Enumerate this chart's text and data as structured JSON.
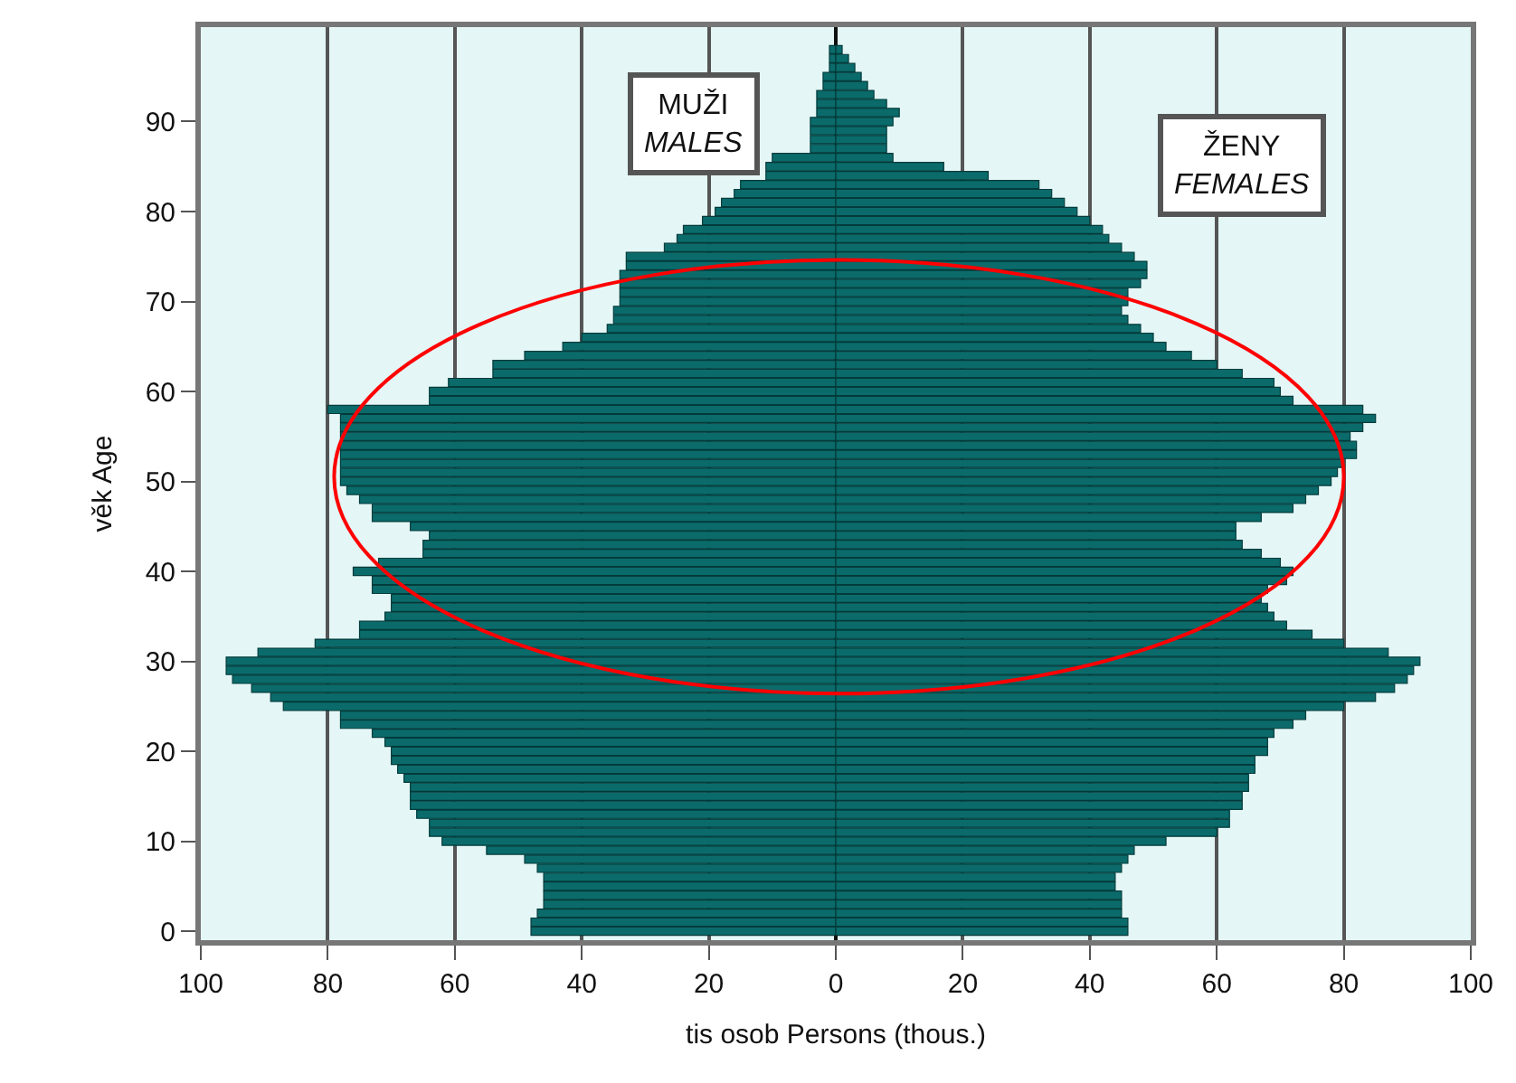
{
  "chart_data": {
    "type": "bar",
    "orientation": "horizontal",
    "xlabel": "tis osob Persons (thous.)",
    "ylabel": "věk Age",
    "categories": [
      null,
      null,
      null,
      null,
      null,
      null,
      null,
      null,
      "90",
      null,
      null,
      null,
      null,
      null,
      null,
      null,
      null,
      null,
      "80",
      null,
      null,
      null,
      null,
      null,
      null,
      null,
      null,
      null,
      "70",
      null,
      null,
      null,
      null,
      null,
      null,
      null,
      null,
      null,
      "60",
      null,
      null,
      null,
      null,
      null,
      null,
      null,
      null,
      null,
      "50",
      null,
      null,
      null,
      null,
      null,
      null,
      null,
      null,
      null,
      "40",
      null,
      null,
      null,
      null,
      null,
      null,
      null,
      null,
      null,
      "30",
      null,
      null,
      null,
      null,
      null,
      null,
      null,
      null,
      null,
      "20",
      null,
      null,
      null,
      null,
      null,
      null,
      null,
      null,
      null,
      "10",
      null,
      null,
      null,
      null,
      null,
      null,
      null,
      null,
      null,
      "0"
    ],
    "series": [
      {
        "name": "MUŽI\nMALES",
        "color": "#0b6b6b",
        "values": [
          -1,
          -1,
          -1,
          -2,
          -2,
          -3,
          -3,
          -3,
          -4,
          -4,
          -4,
          -4,
          -10,
          -11,
          -11,
          -15,
          -16,
          -18,
          -19,
          -21,
          -24,
          -25,
          -27,
          -33,
          -33,
          -34,
          -34,
          -34,
          -34,
          -35,
          -35,
          -36,
          -40,
          -43,
          -49,
          -54,
          -54,
          -61,
          -64,
          -64,
          -80,
          -78,
          -78,
          -78,
          -78,
          -78,
          -78,
          -78,
          -78,
          -77,
          -75,
          -73,
          -73,
          -67,
          -64,
          -65,
          -65,
          -72,
          -76,
          -73,
          -73,
          -70,
          -70,
          -71,
          -75,
          -75,
          -82,
          -91,
          -96,
          -96,
          -95,
          -92,
          -89,
          -87,
          -78,
          -78,
          -73,
          -71,
          -70,
          -70,
          -69,
          -68,
          -67,
          -67,
          -67,
          -66,
          -64,
          -64,
          -62,
          -55,
          -49,
          -47,
          -46,
          -46,
          -46,
          -46,
          -47,
          -48,
          -48
        ]
      },
      {
        "name": "ŽENY\nFEMALES",
        "color": "#0b6b6b",
        "values": [
          1,
          2,
          3,
          4,
          5,
          6,
          8,
          10,
          9,
          8,
          8,
          8,
          9,
          17,
          24,
          32,
          34,
          36,
          38,
          40,
          42,
          43,
          45,
          47,
          49,
          49,
          48,
          46,
          46,
          45,
          46,
          48,
          50,
          52,
          56,
          60,
          64,
          69,
          70,
          72,
          83,
          85,
          83,
          81,
          82,
          82,
          80,
          79,
          78,
          76,
          74,
          72,
          67,
          63,
          63,
          64,
          67,
          70,
          72,
          71,
          68,
          67,
          68,
          69,
          71,
          75,
          80,
          87,
          92,
          91,
          90,
          88,
          85,
          80,
          74,
          72,
          69,
          68,
          68,
          66,
          66,
          65,
          65,
          64,
          64,
          62,
          62,
          60,
          52,
          47,
          46,
          45,
          44,
          44,
          45,
          45,
          45,
          46,
          46
        ]
      }
    ],
    "xlim": [
      -100,
      100
    ],
    "xticks": [
      {
        "value": -100,
        "label": "100"
      },
      {
        "value": -80,
        "label": "80"
      },
      {
        "value": -60,
        "label": "60"
      },
      {
        "value": -40,
        "label": "40"
      },
      {
        "value": -20,
        "label": "20"
      },
      0,
      20,
      40,
      60,
      80,
      100
    ],
    "stacked": true,
    "grid": "x",
    "legend": false
  }
}
